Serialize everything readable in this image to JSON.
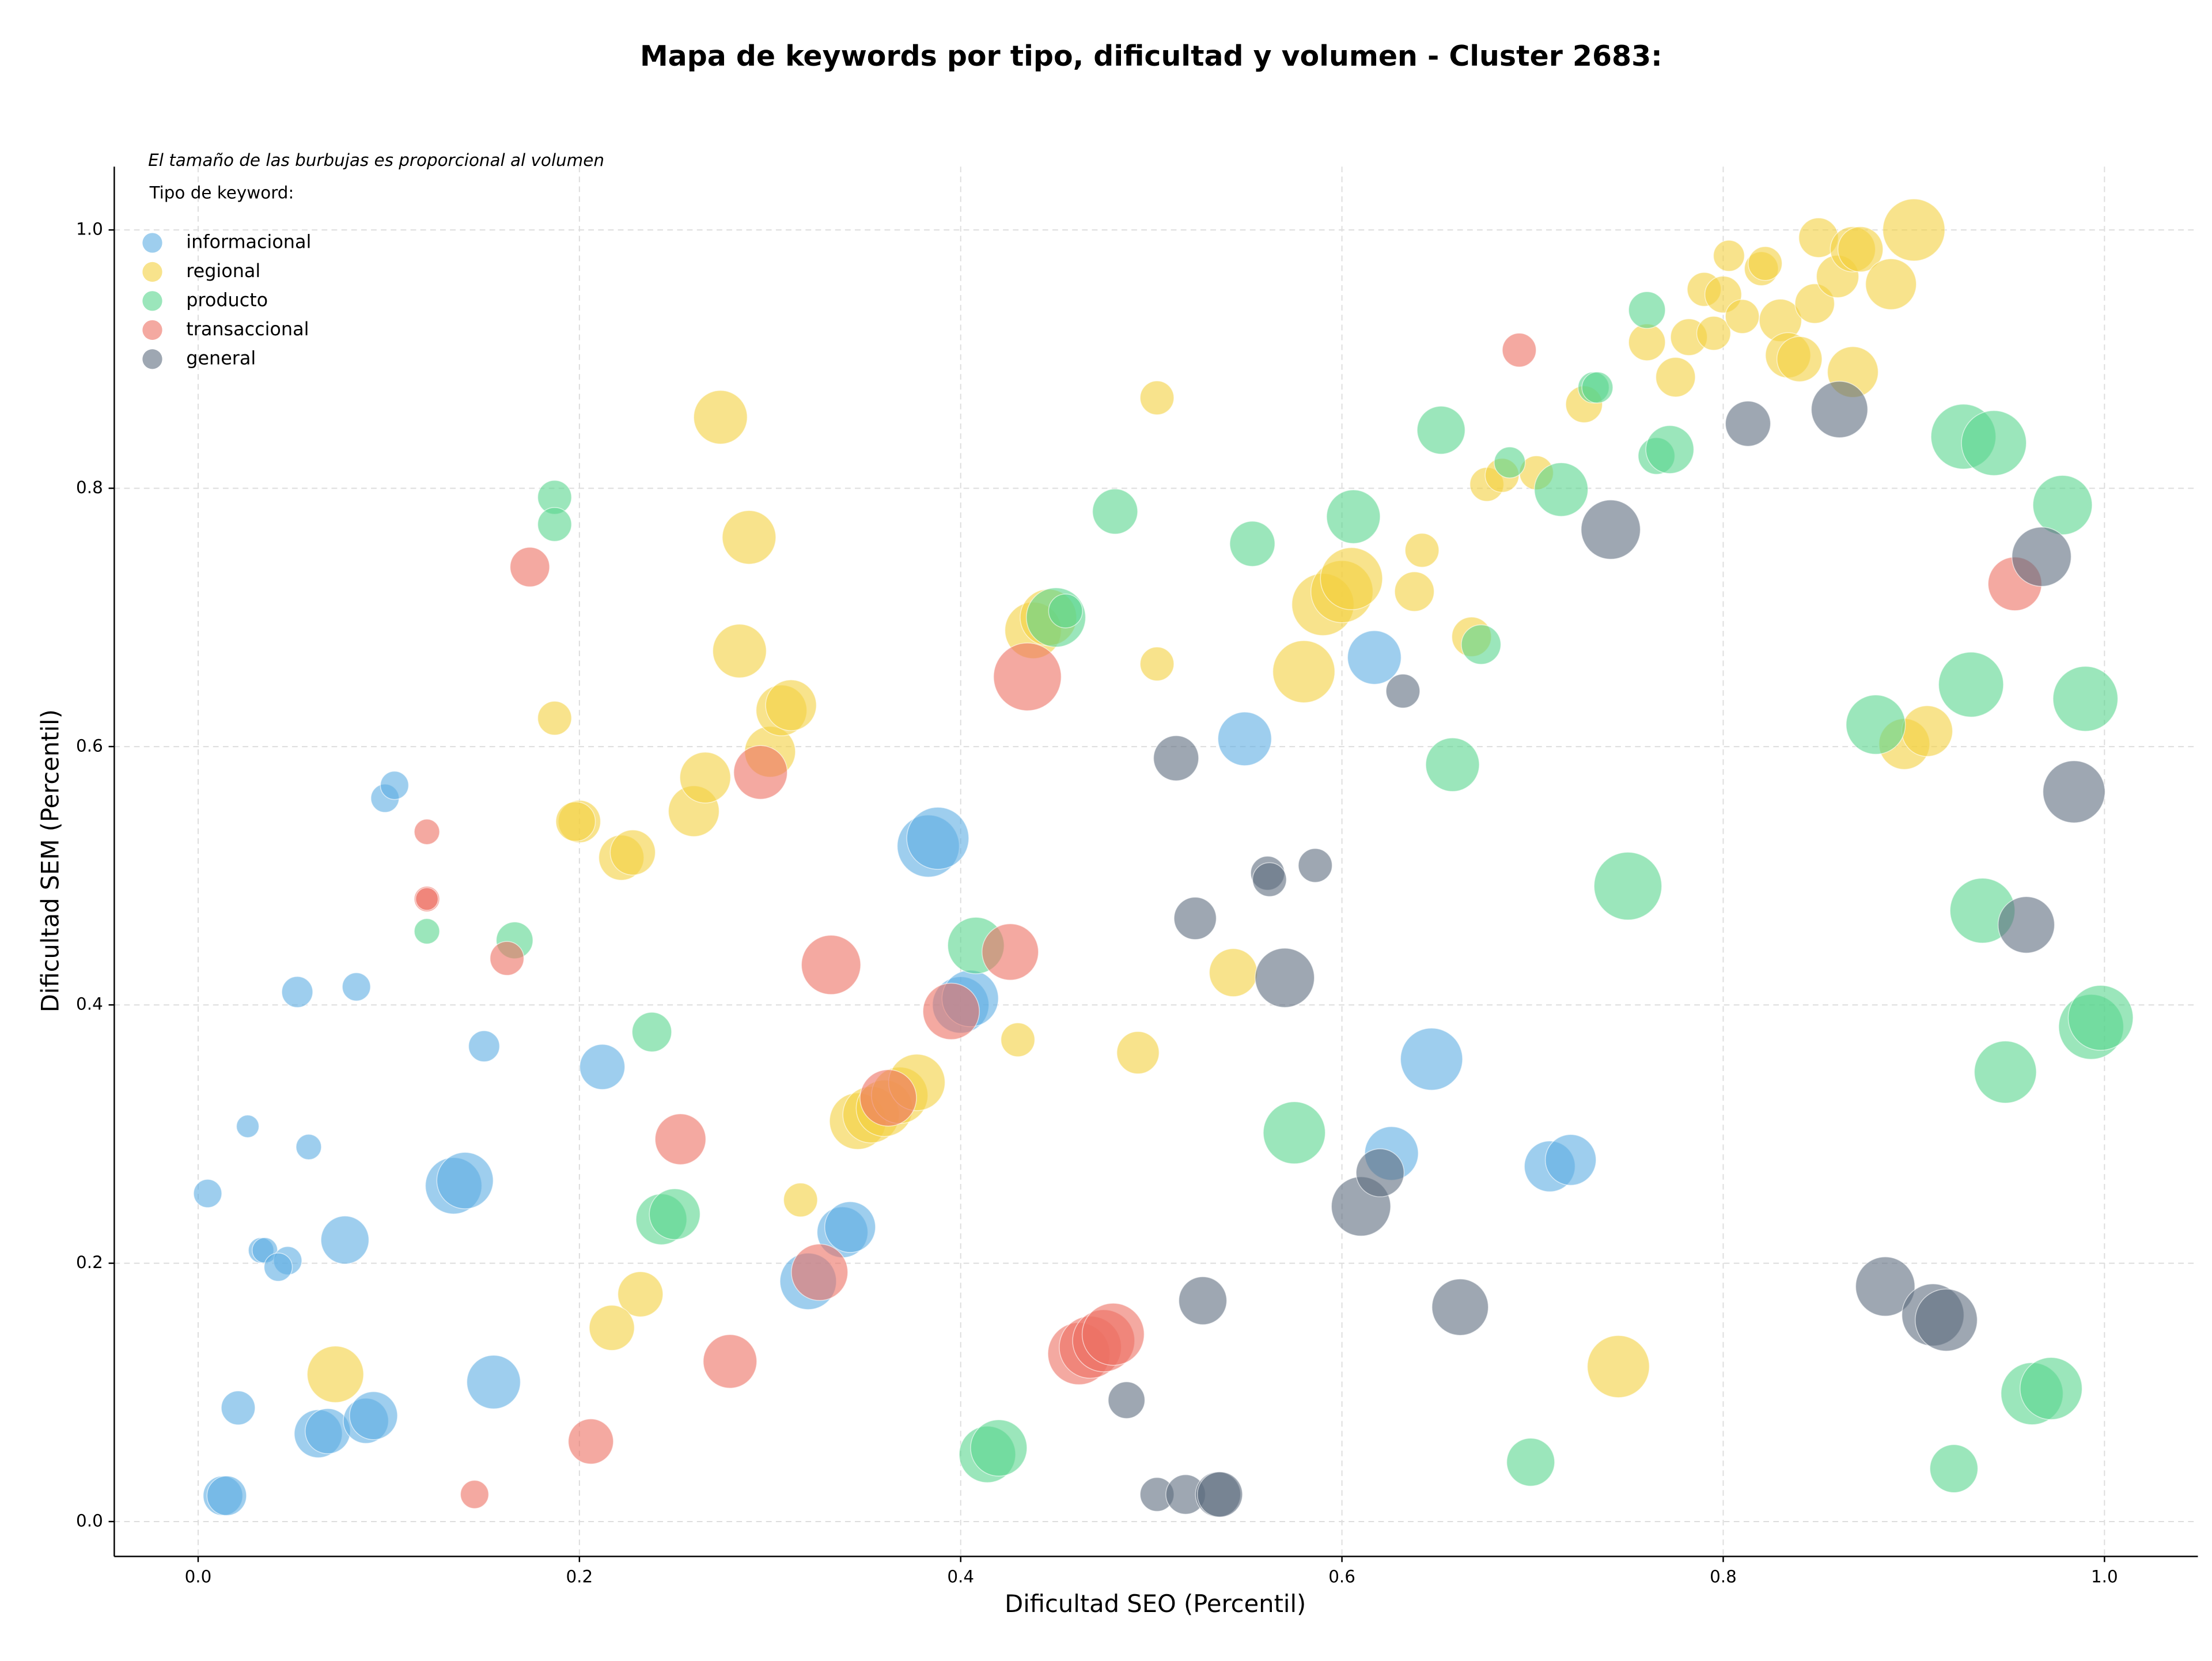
{
  "chart_data": {
    "type": "scatter",
    "title": "Mapa de keywords por tipo, dificultad y volumen - Cluster 2683:",
    "annotation": "El tamaño de las burbujas es proporcional al volumen",
    "legend_title": "Tipo de keyword:",
    "legend": "upper left",
    "x_label": "Dificultad SEO (Percentil)",
    "y_label": "Dificultad SEM (Percentil)",
    "xlim": [
      -0.044,
      1.049
    ],
    "ylim": [
      -0.027,
      1.049
    ],
    "xticks": [
      {
        "value": 0,
        "label": "0.0"
      },
      0.2,
      0.4,
      0.6,
      0.8,
      {
        "value": 1,
        "label": "1.0"
      }
    ],
    "yticks": [
      {
        "value": 0,
        "label": "0.0"
      },
      0.2,
      0.4,
      0.6,
      0.8,
      {
        "value": 1,
        "label": "1.0"
      }
    ],
    "grid": true,
    "opacity": 0.6,
    "series": [
      {
        "name": "informacional",
        "color": "#5DADE2",
        "x": [
          0.005,
          0.026,
          0.058,
          0.052,
          0.083,
          0.098,
          0.103,
          0.15,
          0.033,
          0.035,
          0.047,
          0.042,
          0.077,
          0.021,
          0.013,
          0.015,
          0.063,
          0.068,
          0.088,
          0.092,
          0.134,
          0.14,
          0.155,
          0.212,
          0.32,
          0.338,
          0.342,
          0.383,
          0.388,
          0.4,
          0.405,
          0.549,
          0.617,
          0.626,
          0.647,
          0.709,
          0.72
        ],
        "values": [
          0.254,
          0.306,
          0.29,
          0.41,
          0.414,
          0.56,
          0.57,
          0.368,
          0.21,
          0.21,
          0.202,
          0.197,
          0.218,
          0.088,
          0.02,
          0.02,
          0.068,
          0.07,
          0.078,
          0.082,
          0.26,
          0.264,
          0.108,
          0.352,
          0.186,
          0.224,
          0.228,
          0.523,
          0.529,
          0.4,
          0.405,
          0.606,
          0.669,
          0.285,
          0.358,
          0.275,
          0.28
        ],
        "sizes": [
          10,
          8,
          9,
          11,
          10,
          10,
          10,
          11,
          9,
          9,
          10,
          10,
          17,
          12,
          14,
          14,
          17,
          16,
          16,
          17,
          20,
          20,
          19,
          16,
          20,
          18,
          18,
          22,
          22,
          20,
          20,
          19,
          19,
          19,
          22,
          18,
          18
        ]
      },
      {
        "name": "regional",
        "color": "#F4D03F",
        "x": [
          0.274,
          0.289,
          0.284,
          0.187,
          0.2,
          0.198,
          0.222,
          0.228,
          0.26,
          0.266,
          0.3,
          0.306,
          0.311,
          0.316,
          0.232,
          0.217,
          0.072,
          0.346,
          0.353,
          0.36,
          0.368,
          0.377,
          0.43,
          0.493,
          0.503,
          0.503,
          0.438,
          0.446,
          0.543,
          0.58,
          0.59,
          0.6,
          0.605,
          0.638,
          0.642,
          0.668,
          0.676,
          0.684,
          0.702,
          0.727,
          0.745,
          0.76,
          0.775,
          0.782,
          0.79,
          0.795,
          0.8,
          0.803,
          0.81,
          0.82,
          0.822,
          0.83,
          0.834,
          0.84,
          0.848,
          0.85,
          0.86,
          0.868,
          0.872,
          0.868,
          0.888,
          0.9,
          0.895,
          0.907
        ],
        "values": [
          0.855,
          0.762,
          0.674,
          0.622,
          0.542,
          0.542,
          0.514,
          0.518,
          0.55,
          0.576,
          0.596,
          0.628,
          0.632,
          0.249,
          0.176,
          0.15,
          0.114,
          0.31,
          0.315,
          0.32,
          0.33,
          0.34,
          0.373,
          0.363,
          0.87,
          0.664,
          0.69,
          0.7,
          0.425,
          0.658,
          0.71,
          0.72,
          0.73,
          0.72,
          0.752,
          0.685,
          0.803,
          0.81,
          0.812,
          0.865,
          0.12,
          0.913,
          0.886,
          0.917,
          0.954,
          0.92,
          0.95,
          0.98,
          0.933,
          0.97,
          0.974,
          0.93,
          0.903,
          0.9,
          0.943,
          0.994,
          0.964,
          0.985,
          0.985,
          0.89,
          0.958,
          1.0,
          0.602,
          0.612
        ],
        "sizes": [
          19,
          19,
          19,
          12,
          15,
          14,
          16,
          16,
          18,
          18,
          18,
          18,
          18,
          12,
          16,
          16,
          20,
          20,
          20,
          20,
          20,
          20,
          12,
          15,
          12,
          12,
          20,
          20,
          17,
          22,
          22,
          22,
          22,
          14,
          12,
          14,
          12,
          12,
          12,
          13,
          22,
          13,
          14,
          13,
          12,
          12,
          13,
          11,
          12,
          12,
          12,
          15,
          16,
          16,
          14,
          14,
          15,
          16,
          16,
          18,
          18,
          22,
          18,
          18
        ]
      },
      {
        "name": "producto",
        "color": "#58D68D",
        "x": [
          0.187,
          0.187,
          0.12,
          0.166,
          0.238,
          0.243,
          0.25,
          0.408,
          0.414,
          0.42,
          0.45,
          0.455,
          0.481,
          0.553,
          0.575,
          0.606,
          0.652,
          0.658,
          0.673,
          0.688,
          0.699,
          0.715,
          0.732,
          0.734,
          0.75,
          0.76,
          0.765,
          0.772,
          0.88,
          0.926,
          0.942,
          0.93,
          0.936,
          0.948,
          0.921,
          0.962,
          0.972,
          0.978,
          0.99,
          0.993,
          0.998
        ],
        "values": [
          0.793,
          0.772,
          0.457,
          0.45,
          0.379,
          0.234,
          0.238,
          0.446,
          0.052,
          0.057,
          0.7,
          0.705,
          0.782,
          0.757,
          0.301,
          0.778,
          0.845,
          0.586,
          0.679,
          0.82,
          0.046,
          0.799,
          0.878,
          0.878,
          0.492,
          0.938,
          0.825,
          0.83,
          0.617,
          0.84,
          0.835,
          0.648,
          0.473,
          0.348,
          0.041,
          0.099,
          0.103,
          0.787,
          0.637,
          0.383,
          0.39
        ],
        "sizes": [
          12,
          12,
          9,
          13,
          14,
          18,
          18,
          20,
          20,
          20,
          21,
          12,
          16,
          16,
          22,
          19,
          17,
          19,
          14,
          11,
          17,
          19,
          11,
          11,
          24,
          13,
          13,
          17,
          21,
          23,
          23,
          23,
          23,
          22,
          17,
          22,
          22,
          21,
          23,
          23,
          23
        ]
      },
      {
        "name": "transaccional",
        "color": "#EC7063",
        "x": [
          0.12,
          0.12,
          0.12,
          0.174,
          0.162,
          0.145,
          0.206,
          0.253,
          0.279,
          0.295,
          0.332,
          0.326,
          0.362,
          0.395,
          0.426,
          0.435,
          0.462,
          0.468,
          0.475,
          0.48,
          0.693,
          0.953
        ],
        "values": [
          0.534,
          0.482,
          0.482,
          0.739,
          0.436,
          0.021,
          0.062,
          0.296,
          0.124,
          0.58,
          0.431,
          0.193,
          0.328,
          0.395,
          0.441,
          0.654,
          0.13,
          0.135,
          0.14,
          0.145,
          0.907,
          0.726
        ],
        "sizes": [
          9,
          9,
          8,
          14,
          12,
          10,
          16,
          18,
          19,
          19,
          21,
          20,
          20,
          20,
          20,
          24,
          22,
          22,
          22,
          22,
          12,
          19
        ]
      },
      {
        "name": "general",
        "color": "#5D6D7E",
        "x": [
          0.487,
          0.503,
          0.518,
          0.535,
          0.536,
          0.513,
          0.523,
          0.527,
          0.561,
          0.562,
          0.586,
          0.57,
          0.61,
          0.62,
          0.632,
          0.662,
          0.741,
          0.813,
          0.861,
          0.885,
          0.91,
          0.917,
          0.959,
          0.967,
          0.984
        ],
        "values": [
          0.094,
          0.021,
          0.021,
          0.021,
          0.021,
          0.591,
          0.467,
          0.171,
          0.502,
          0.497,
          0.508,
          0.421,
          0.244,
          0.27,
          0.643,
          0.166,
          0.768,
          0.85,
          0.861,
          0.182,
          0.16,
          0.156,
          0.462,
          0.747,
          0.565
        ],
        "sizes": [
          13,
          12,
          14,
          16,
          16,
          16,
          15,
          17,
          12,
          12,
          12,
          21,
          21,
          17,
          12,
          20,
          21,
          16,
          20,
          21,
          22,
          22,
          20,
          21,
          22
        ]
      }
    ]
  }
}
